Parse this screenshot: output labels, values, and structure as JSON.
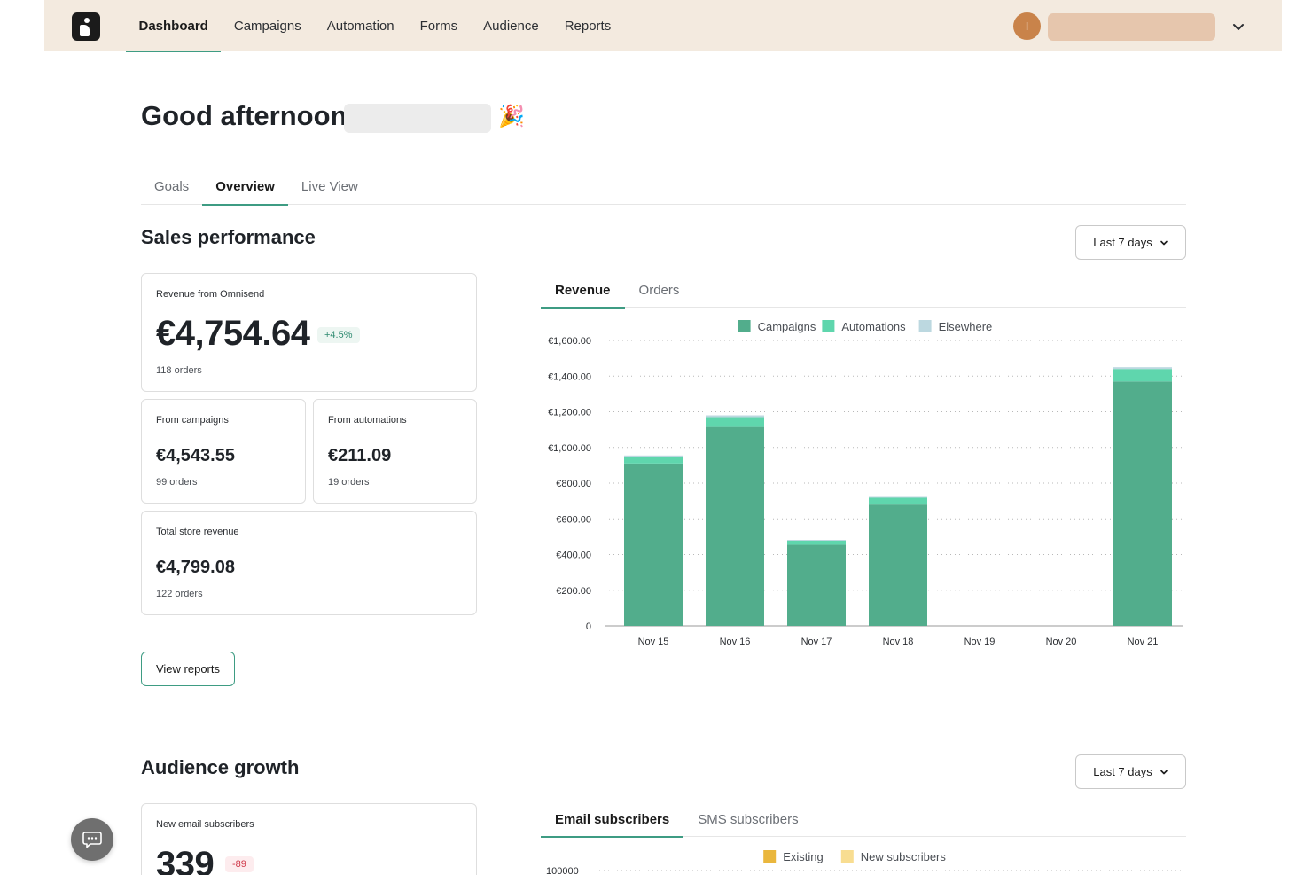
{
  "nav": {
    "items": [
      {
        "label": "Dashboard",
        "active": true
      },
      {
        "label": "Campaigns",
        "active": false
      },
      {
        "label": "Automation",
        "active": false
      },
      {
        "label": "Forms",
        "active": false
      },
      {
        "label": "Audience",
        "active": false
      },
      {
        "label": "Reports",
        "active": false
      }
    ],
    "avatar_initial": "I"
  },
  "greeting": "Good afternoon,",
  "greeting_emoji": "🎉",
  "page_tabs": [
    {
      "label": "Goals",
      "active": false
    },
    {
      "label": "Overview",
      "active": true
    },
    {
      "label": "Live View",
      "active": false
    }
  ],
  "sales": {
    "title": "Sales performance",
    "range": "Last 7 days",
    "revenue_card": {
      "label": "Revenue from Omnisend",
      "value": "€4,754.64",
      "change": "+4.5%",
      "orders": "118 orders"
    },
    "campaigns_card": {
      "label": "From campaigns",
      "value": "€4,543.55",
      "orders": "99 orders"
    },
    "automations_card": {
      "label": "From automations",
      "value": "€211.09",
      "orders": "19 orders"
    },
    "total_card": {
      "label": "Total store revenue",
      "value": "€4,799.08",
      "orders": "122 orders"
    },
    "view_reports": "View reports",
    "chart_tabs": [
      {
        "label": "Revenue",
        "active": true
      },
      {
        "label": "Orders",
        "active": false
      }
    ]
  },
  "audience": {
    "title": "Audience growth",
    "range": "Last 7 days",
    "email_card": {
      "label": "New email subscribers",
      "value": "339",
      "change": "-89"
    },
    "chart_tabs": [
      {
        "label": "Email subscribers",
        "active": true
      },
      {
        "label": "SMS subscribers",
        "active": false
      }
    ]
  },
  "colors": {
    "accent": "#3e9c83",
    "campaigns": "#52ad8c",
    "automations": "#5fd6ad",
    "elsewhere": "#bcd8e0",
    "existing": "#eab73d",
    "new_subscribers": "#f8dd91"
  },
  "chart_data": [
    {
      "type": "bar",
      "stacked": true,
      "categories": [
        "Nov 15",
        "Nov 16",
        "Nov 17",
        "Nov 18",
        "Nov 19",
        "Nov 20",
        "Nov 21"
      ],
      "series": [
        {
          "name": "Campaigns",
          "color": "#52ad8c",
          "values": [
            910,
            1115,
            455,
            680,
            0,
            0,
            1370
          ]
        },
        {
          "name": "Automations",
          "color": "#5fd6ad",
          "values": [
            35,
            55,
            22,
            38,
            0,
            0,
            70
          ]
        },
        {
          "name": "Elsewhere",
          "color": "#bcd8e0",
          "values": [
            10,
            10,
            5,
            5,
            0,
            0,
            10
          ]
        }
      ],
      "ylim": [
        0,
        1600
      ],
      "yticks": [
        0,
        200,
        400,
        600,
        800,
        1000,
        1200,
        1400,
        1600
      ],
      "ytick_labels": [
        "0",
        "€200.00",
        "€400.00",
        "€600.00",
        "€800.00",
        "€1,000.00",
        "€1,200.00",
        "€1,400.00",
        "€1,600.00"
      ],
      "legend": "top-center",
      "grid": "horizontal-dotted"
    },
    {
      "type": "bar",
      "stacked": true,
      "series": [
        {
          "name": "Existing",
          "color": "#eab73d"
        },
        {
          "name": "New subscribers",
          "color": "#f8dd91"
        }
      ],
      "ytick_labels": [
        "100000"
      ],
      "legend": "top-center",
      "grid": "horizontal-dotted"
    }
  ]
}
